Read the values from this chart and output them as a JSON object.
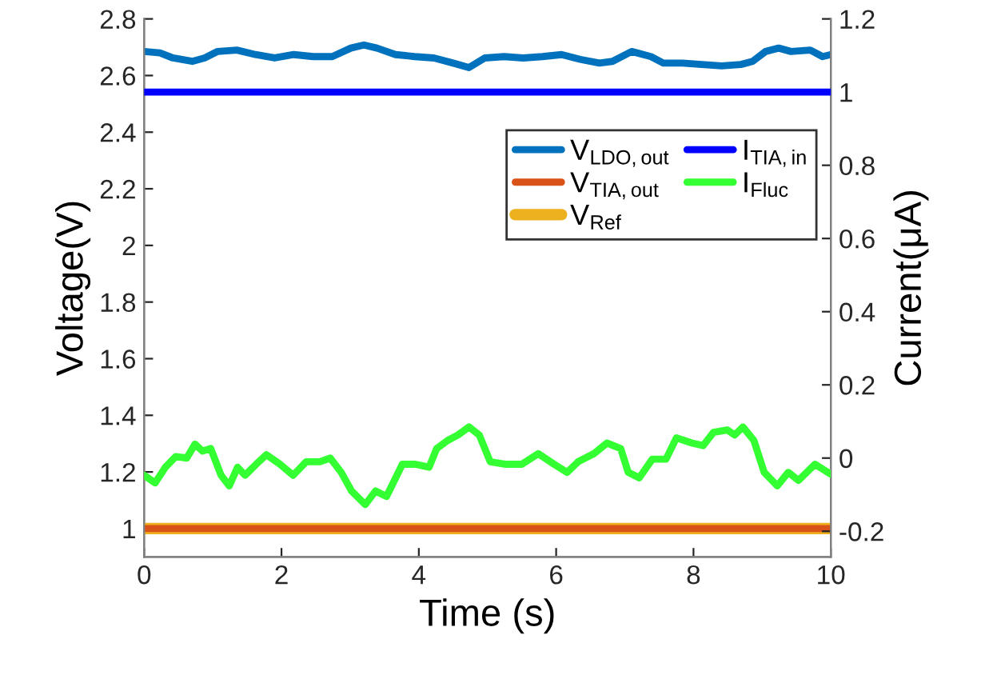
{
  "chart_data": {
    "type": "line",
    "xlabel": "Time (s)",
    "ylabel": "Voltage(V)",
    "y2label": "Current(μA)",
    "xlim": [
      0,
      10
    ],
    "xticks": [
      0,
      2,
      4,
      6,
      8,
      10
    ],
    "ylim": [
      0.9,
      2.8
    ],
    "yticks": [
      1,
      1.2,
      1.4,
      1.6,
      1.8,
      2,
      2.2,
      2.4,
      2.6,
      2.8
    ],
    "y2lim": [
      -0.27,
      1.2
    ],
    "y2ticks": [
      -0.2,
      0,
      0.2,
      0.4,
      0.6,
      0.8,
      1,
      1.2
    ],
    "grid": false,
    "legend": "top right",
    "line_style": "solid",
    "marker": "none",
    "series": [
      {
        "name": "V$_{LDO,out}$",
        "color": "#0072bd",
        "x": [
          0,
          0.23,
          0.42,
          0.7,
          0.88,
          1.07,
          1.35,
          1.62,
          1.9,
          2.18,
          2.46,
          2.74,
          3.01,
          3.2,
          3.39,
          3.66,
          3.94,
          4.22,
          4.5,
          4.73,
          4.96,
          5.24,
          5.52,
          5.8,
          6.08,
          6.35,
          6.63,
          6.82,
          7.1,
          7.38,
          7.56,
          7.84,
          8.12,
          8.41,
          8.69,
          8.86,
          9.05,
          9.24,
          9.42,
          9.7,
          9.88,
          10
        ],
        "values": [
          2.685,
          2.68,
          2.662,
          2.65,
          2.662,
          2.685,
          2.69,
          2.674,
          2.662,
          2.674,
          2.667,
          2.667,
          2.697,
          2.708,
          2.697,
          2.674,
          2.667,
          2.662,
          2.644,
          2.628,
          2.662,
          2.667,
          2.662,
          2.667,
          2.674,
          2.657,
          2.644,
          2.65,
          2.685,
          2.667,
          2.644,
          2.644,
          2.639,
          2.634,
          2.639,
          2.65,
          2.685,
          2.697,
          2.685,
          2.69,
          2.667,
          2.674
        ]
      },
      {
        "name": "V$_{TIA,out}$",
        "color": "#d95319",
        "x": [
          0,
          10
        ],
        "values": [
          1,
          1
        ]
      },
      {
        "name": "V$_{Ref}$",
        "color": "#edb120",
        "x": [
          0,
          10
        ],
        "values": [
          1,
          1
        ]
      },
      {
        "name": "I$_{TIA,in}$",
        "color": "#0000ff",
        "axis": "y2",
        "x": [
          0,
          10
        ],
        "values": [
          1,
          1
        ]
      },
      {
        "name": "I$_{Fluc}$",
        "color": "#33ff33",
        "axis": "y2",
        "x": [
          0,
          0.16,
          0.31,
          0.46,
          0.62,
          0.74,
          0.85,
          0.97,
          1.12,
          1.24,
          1.36,
          1.47,
          1.63,
          1.78,
          1.98,
          2.17,
          2.36,
          2.56,
          2.71,
          2.87,
          3.02,
          3.22,
          3.37,
          3.53,
          3.76,
          3.95,
          4.15,
          4.26,
          4.42,
          4.57,
          4.73,
          4.88,
          5.04,
          5.27,
          5.5,
          5.74,
          5.97,
          6.16,
          6.32,
          6.55,
          6.74,
          6.94,
          7.05,
          7.21,
          7.4,
          7.6,
          7.75,
          7.98,
          8.14,
          8.29,
          8.49,
          8.6,
          8.72,
          8.88,
          9.03,
          9.22,
          9.38,
          9.53,
          9.77,
          10
        ],
        "values": [
          -0.047,
          -0.068,
          -0.025,
          0.004,
          0,
          0.038,
          0.019,
          0.026,
          -0.047,
          -0.076,
          -0.025,
          -0.047,
          -0.017,
          0.009,
          -0.017,
          -0.047,
          -0.01,
          -0.01,
          0,
          -0.039,
          -0.09,
          -0.127,
          -0.09,
          -0.105,
          -0.017,
          -0.017,
          -0.025,
          0.026,
          0.048,
          0.063,
          0.085,
          0.063,
          -0.01,
          -0.017,
          -0.017,
          0.012,
          -0.017,
          -0.039,
          -0.01,
          0.012,
          0.041,
          0.026,
          -0.039,
          -0.054,
          -0.003,
          -0.003,
          0.055,
          0.041,
          0.034,
          0.07,
          0.077,
          0.063,
          0.085,
          0.048,
          -0.039,
          -0.076,
          -0.039,
          -0.061,
          -0.017,
          -0.044
        ]
      }
    ]
  }
}
